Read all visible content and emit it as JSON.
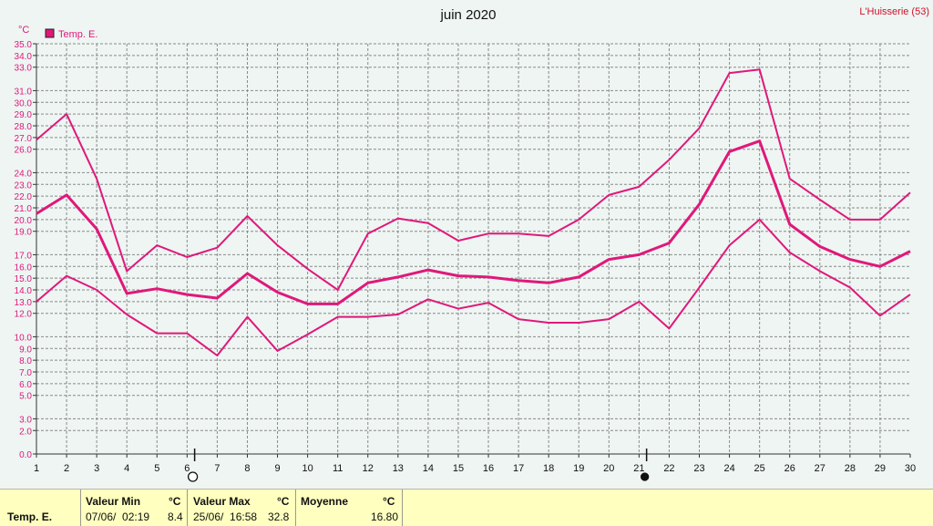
{
  "station": "L'Huisserie (53)",
  "chart_data": {
    "type": "line",
    "title": "juin 2020",
    "ylabel": "°C",
    "legend": "top-left",
    "grid": true,
    "ylim": [
      0,
      35
    ],
    "ytick_labels": [
      "0.0",
      "2.0",
      "3.0",
      "5.0",
      "6.0",
      "7.0",
      "8.0",
      "9.0",
      "10.0",
      "12.0",
      "13.0",
      "14.0",
      "15.0",
      "16.0",
      "17.0",
      "19.0",
      "20.0",
      "21.0",
      "22.0",
      "23.0",
      "24.0",
      "26.0",
      "27.0",
      "28.0",
      "29.0",
      "30.0",
      "31.0",
      "33.0",
      "34.0",
      "35.0"
    ],
    "x": [
      1,
      2,
      3,
      4,
      5,
      6,
      7,
      8,
      9,
      10,
      11,
      12,
      13,
      14,
      15,
      16,
      17,
      18,
      19,
      20,
      21,
      22,
      23,
      24,
      25,
      26,
      27,
      28,
      29,
      30
    ],
    "legend_label": "Temp. E.",
    "series": [
      {
        "role": "max",
        "color": "#e0187a",
        "values": [
          26.8,
          29.0,
          23.5,
          15.6,
          17.8,
          16.8,
          17.6,
          20.3,
          17.8,
          15.8,
          14.0,
          18.8,
          20.1,
          19.7,
          18.2,
          18.8,
          18.8,
          18.6,
          20.0,
          22.1,
          22.8,
          25.1,
          27.8,
          32.5,
          32.8,
          23.5,
          21.7,
          20.0,
          20.0,
          22.3
        ]
      },
      {
        "role": "mean",
        "color": "#e0187a",
        "values": [
          20.5,
          22.1,
          19.2,
          13.7,
          14.1,
          13.6,
          13.3,
          15.4,
          13.8,
          12.8,
          12.8,
          14.6,
          15.1,
          15.7,
          15.2,
          15.1,
          14.8,
          14.6,
          15.1,
          16.6,
          17.0,
          18.0,
          21.3,
          25.8,
          26.7,
          19.6,
          17.7,
          16.6,
          16.0,
          17.3
        ]
      },
      {
        "role": "min",
        "color": "#e0187a",
        "values": [
          13.0,
          15.2,
          14.0,
          11.9,
          10.3,
          10.3,
          8.4,
          11.7,
          8.8,
          10.2,
          11.7,
          11.7,
          11.9,
          13.2,
          12.4,
          12.9,
          11.5,
          11.2,
          11.2,
          11.5,
          13.0,
          10.7,
          14.2,
          17.8,
          20.0,
          17.2,
          15.6,
          14.2,
          11.8,
          13.6
        ]
      }
    ],
    "moon_phases": [
      {
        "day": 6,
        "phase": "full-moon"
      },
      {
        "day": 21,
        "phase": "new-moon"
      }
    ]
  },
  "stats": {
    "row_label": "Temp. E.",
    "min_header": "Valeur Min",
    "min_unit": "°C",
    "min_date": "07/06/  02:19",
    "min_value": "8.4",
    "max_header": "Valeur Max",
    "max_unit": "°C",
    "max_date": "25/06/  16:58",
    "max_value": "32.8",
    "avg_header": "Moyenne",
    "avg_unit": "°C",
    "avg_value": "16.80"
  }
}
